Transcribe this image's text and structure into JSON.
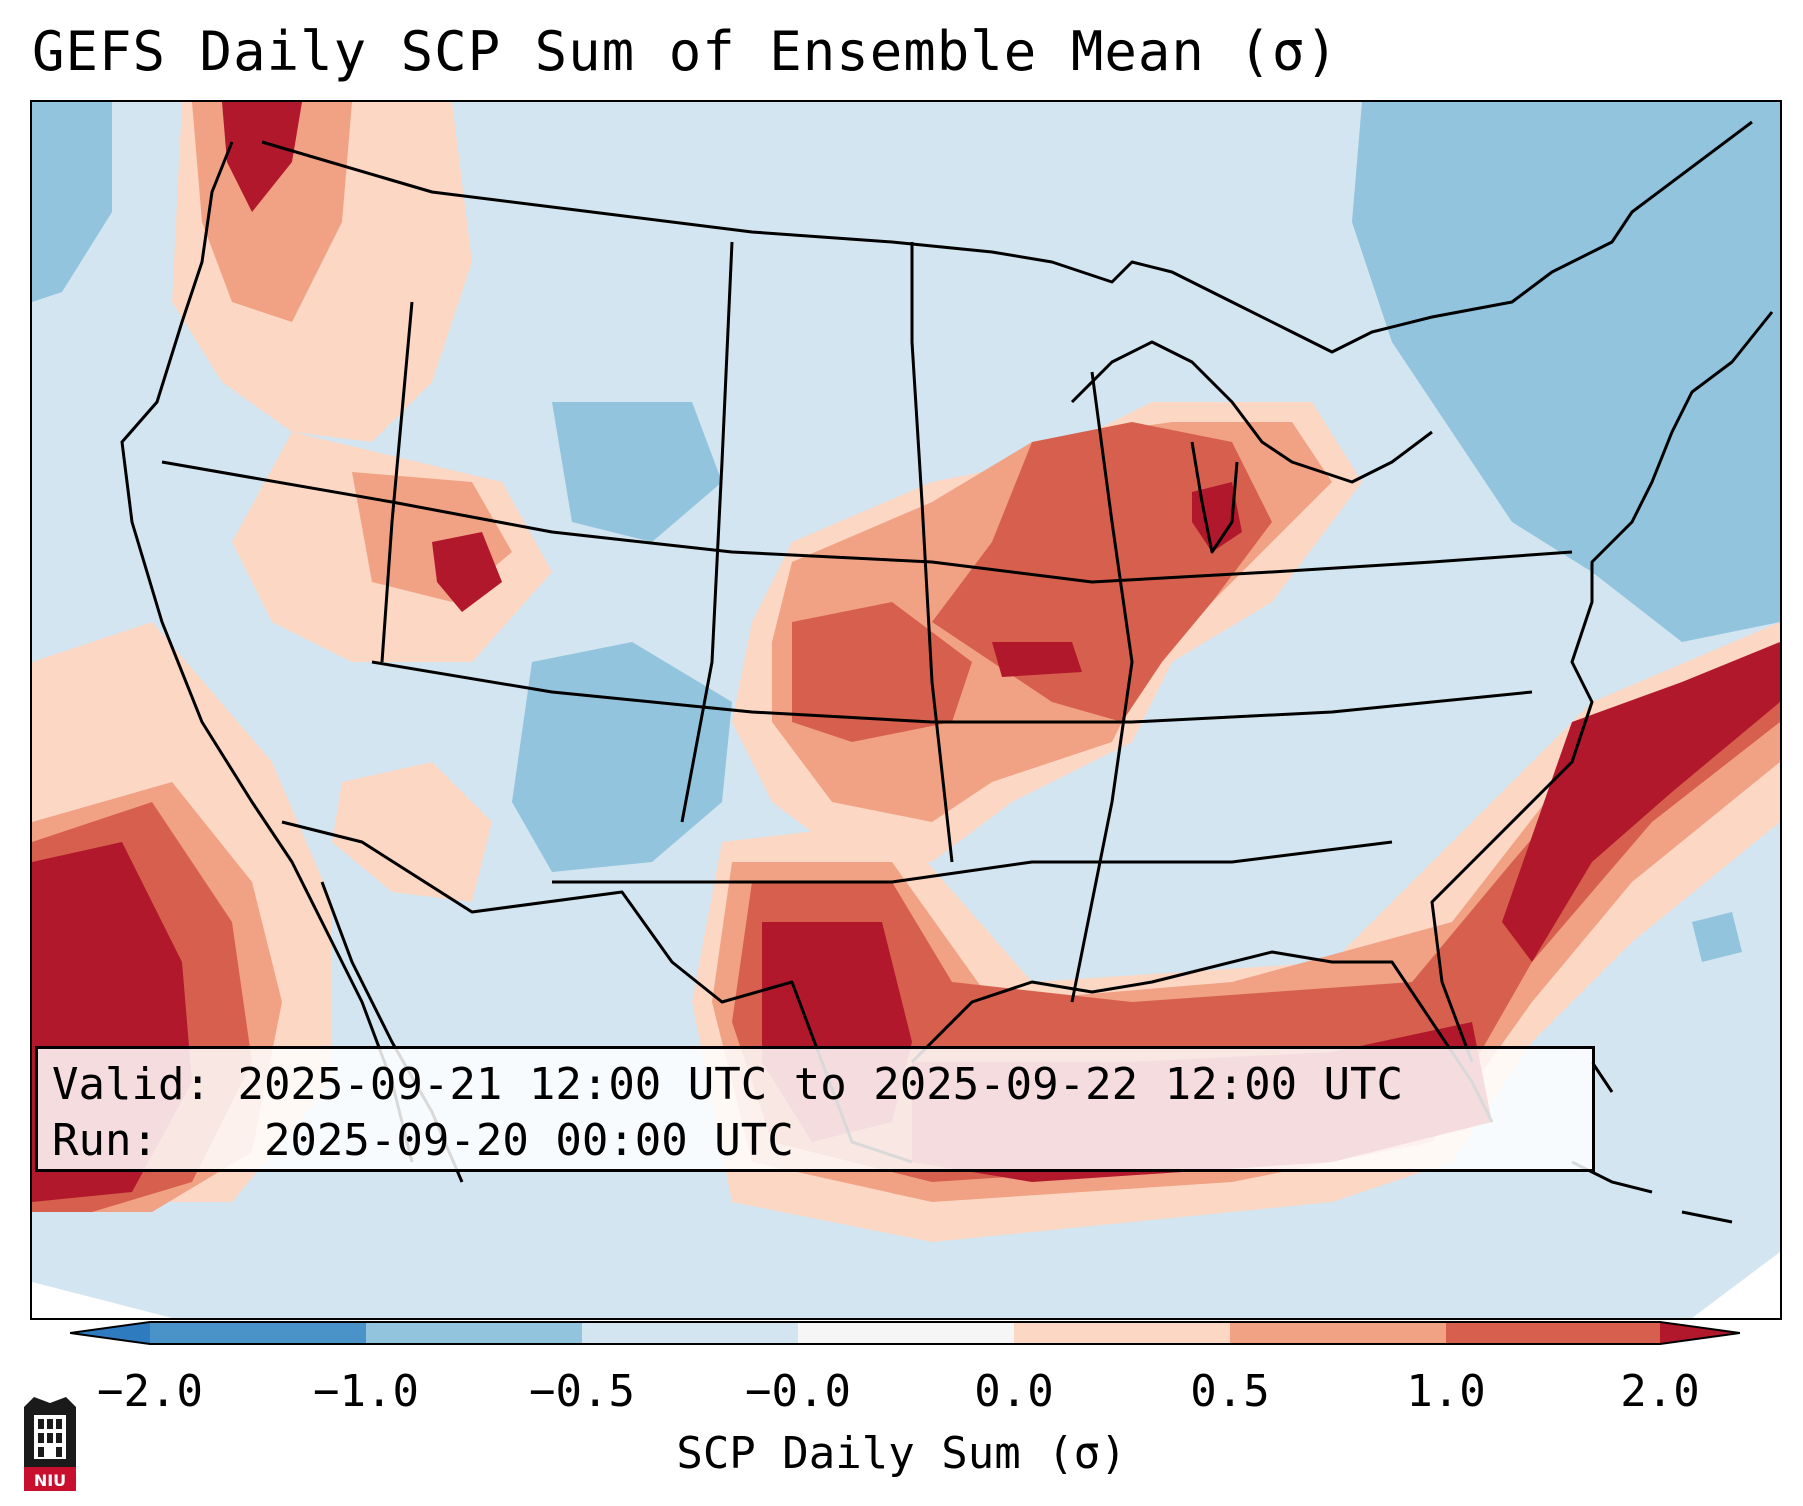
{
  "title": "GEFS Daily SCP Sum of Ensemble Mean (σ)",
  "info": {
    "valid_label": "Valid:",
    "valid_value": "2025-09-21 12:00 UTC to 2025-09-22 12:00 UTC",
    "run_label": "Run:",
    "run_value": "2025-09-20 00:00 UTC"
  },
  "colorbar": {
    "label": "SCP Daily Sum (σ)",
    "ticks": [
      "−2.0",
      "−1.0",
      "−0.5",
      "−0.0",
      "0.0",
      "0.5",
      "1.0",
      "2.0"
    ],
    "colors": {
      "under": "#2f7bbf",
      "n2_n1": "#4a93c8",
      "n1_n05": "#92c4de",
      "n05_n0": "#d2e5f0",
      "n0_0": "#f6f6f6",
      "p0_05": "#fbd7c4",
      "p05_1": "#f1a285",
      "p1_2": "#d6604d",
      "over": "#b2182b"
    }
  },
  "map": {
    "background": "#d2e5f0",
    "anomaly_levels": [
      "-1.0 to -0.5",
      "0.0 to 0.5",
      "0.5 to 1.0",
      "1.0 to 2.0",
      ">2.0"
    ]
  },
  "logo": {
    "text": "NIU"
  }
}
